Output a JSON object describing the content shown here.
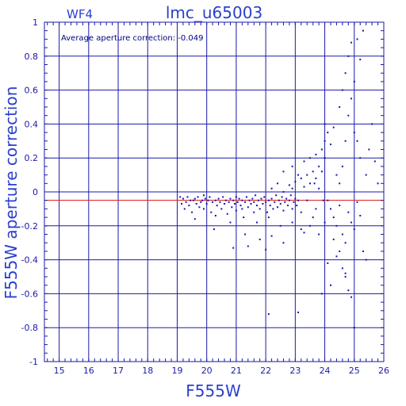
{
  "chart_data": {
    "type": "scatter",
    "title": "lmc_u65003",
    "subtitle": "WF4",
    "annotation": "Average aperture correction: -0.049",
    "xlabel": "F555W",
    "ylabel": "F555W aperture correction",
    "xlim": [
      14.5,
      26.0
    ],
    "ylim": [
      -1.0,
      1.0
    ],
    "xticks": [
      15,
      16,
      17,
      18,
      19,
      20,
      21,
      22,
      23,
      24,
      25,
      26
    ],
    "yticks": [
      -1,
      -0.8,
      -0.6,
      -0.4,
      -0.2,
      0,
      0.2,
      0.4,
      0.6,
      0.8,
      1
    ],
    "ytick_labels": [
      "-1",
      "-0.8",
      "-0.6",
      "-0.4",
      "-0.2",
      "0",
      "0.2",
      "0.4",
      "0.6",
      "0.8",
      "1"
    ],
    "grid": true,
    "reference_line": {
      "y": -0.049,
      "color": "#e02020"
    },
    "colors": {
      "axes": "#1a1aa8",
      "points": "#1515b0",
      "text": "#2a3fd0"
    },
    "series": [
      {
        "values": [
          [
            19.1,
            -0.03
          ],
          [
            19.15,
            -0.07
          ],
          [
            19.2,
            -0.04
          ],
          [
            19.25,
            -0.1
          ],
          [
            19.3,
            -0.06
          ],
          [
            19.35,
            -0.03
          ],
          [
            19.4,
            -0.08
          ],
          [
            19.45,
            -0.05
          ],
          [
            19.5,
            -0.12
          ],
          [
            19.55,
            -0.05
          ],
          [
            19.6,
            -0.04
          ],
          [
            19.6,
            -0.16
          ],
          [
            19.65,
            -0.07
          ],
          [
            19.7,
            -0.03
          ],
          [
            19.75,
            -0.09
          ],
          [
            19.8,
            -0.06
          ],
          [
            19.85,
            -0.05
          ],
          [
            19.9,
            -0.1
          ],
          [
            19.95,
            -0.04
          ],
          [
            20.0,
            -0.07
          ],
          [
            20.05,
            -0.05
          ],
          [
            20.1,
            -0.03
          ],
          [
            20.15,
            -0.12
          ],
          [
            20.2,
            -0.06
          ],
          [
            20.25,
            -0.22
          ],
          [
            20.3,
            -0.05
          ],
          [
            20.35,
            -0.08
          ],
          [
            20.4,
            -0.04
          ],
          [
            20.45,
            -0.06
          ],
          [
            20.5,
            -0.1
          ],
          [
            20.55,
            -0.03
          ],
          [
            20.6,
            -0.07
          ],
          [
            20.65,
            -0.05
          ],
          [
            20.7,
            -0.13
          ],
          [
            20.75,
            -0.06
          ],
          [
            20.8,
            -0.04
          ],
          [
            20.85,
            -0.09
          ],
          [
            20.9,
            -0.05
          ],
          [
            20.95,
            -0.07
          ],
          [
            21.0,
            -0.03
          ],
          [
            21.0,
            -0.11
          ],
          [
            21.05,
            -0.06
          ],
          [
            21.1,
            -0.04
          ],
          [
            21.15,
            -0.08
          ],
          [
            21.2,
            -0.05
          ],
          [
            21.25,
            -0.15
          ],
          [
            21.3,
            -0.06
          ],
          [
            21.35,
            -0.03
          ],
          [
            21.4,
            -0.09
          ],
          [
            21.45,
            -0.05
          ],
          [
            21.5,
            -0.07
          ],
          [
            21.55,
            -0.04
          ],
          [
            21.6,
            -0.12
          ],
          [
            21.6,
            -0.06
          ],
          [
            21.65,
            -0.02
          ],
          [
            21.7,
            -0.08
          ],
          [
            21.75,
            -0.05
          ],
          [
            21.8,
            -0.1
          ],
          [
            21.85,
            -0.04
          ],
          [
            21.9,
            -0.07
          ],
          [
            21.95,
            -0.03
          ],
          [
            22.0,
            -0.06
          ],
          [
            22.05,
            -0.12
          ],
          [
            22.1,
            -0.05
          ],
          [
            22.15,
            -0.08
          ],
          [
            22.2,
            -0.04
          ],
          [
            22.25,
            -0.1
          ],
          [
            22.3,
            -0.06
          ],
          [
            22.35,
            -0.02
          ],
          [
            22.4,
            -0.09
          ],
          [
            22.45,
            -0.05
          ],
          [
            22.5,
            -0.07
          ],
          [
            22.55,
            -0.03
          ],
          [
            22.6,
            -0.11
          ],
          [
            22.65,
            -0.06
          ],
          [
            22.7,
            -0.04
          ],
          [
            22.75,
            -0.08
          ],
          [
            22.8,
            -0.05
          ],
          [
            22.85,
            -0.02
          ],
          [
            22.9,
            -0.1
          ],
          [
            22.95,
            -0.06
          ],
          [
            23.0,
            -0.04
          ],
          [
            23.05,
            -0.08
          ],
          [
            23.1,
            -0.05
          ],
          [
            19.9,
            -0.02
          ],
          [
            20.3,
            -0.14
          ],
          [
            20.8,
            -0.18
          ],
          [
            21.2,
            -0.1
          ],
          [
            21.7,
            -0.18
          ],
          [
            22.1,
            -0.15
          ],
          [
            22.5,
            -0.2
          ],
          [
            22.9,
            -0.18
          ],
          [
            23.2,
            -0.22
          ],
          [
            21.3,
            -0.25
          ],
          [
            21.8,
            -0.28
          ],
          [
            22.2,
            -0.26
          ],
          [
            22.6,
            -0.3
          ],
          [
            21.4,
            -0.32
          ],
          [
            20.9,
            -0.33
          ],
          [
            22.0,
            -0.34
          ],
          [
            23.3,
            -0.24
          ],
          [
            23.5,
            -0.2
          ],
          [
            23.6,
            -0.15
          ],
          [
            23.7,
            -0.1
          ],
          [
            23.8,
            -0.25
          ],
          [
            22.2,
            0.02
          ],
          [
            22.4,
            0.05
          ],
          [
            22.6,
            0.0
          ],
          [
            22.8,
            0.04
          ],
          [
            22.9,
            0.02
          ],
          [
            23.0,
            0.06
          ],
          [
            23.2,
            0.08
          ],
          [
            23.3,
            0.03
          ],
          [
            23.4,
            0.1
          ],
          [
            23.5,
            0.05
          ],
          [
            23.6,
            0.12
          ],
          [
            23.7,
            0.08
          ],
          [
            23.8,
            0.15
          ],
          [
            23.9,
            0.12
          ],
          [
            22.6,
            0.12
          ],
          [
            22.9,
            0.15
          ],
          [
            23.1,
            0.1
          ],
          [
            23.3,
            0.18
          ],
          [
            23.5,
            0.2
          ],
          [
            23.7,
            0.22
          ],
          [
            23.9,
            0.25
          ],
          [
            24.0,
            0.2
          ],
          [
            24.0,
            0.3
          ],
          [
            24.0,
            0.4
          ],
          [
            24.1,
            0.35
          ],
          [
            24.2,
            0.28
          ],
          [
            24.3,
            0.38
          ],
          [
            24.4,
            0.1
          ],
          [
            24.5,
            0.05
          ],
          [
            24.6,
            0.15
          ],
          [
            24.7,
            0.3
          ],
          [
            24.8,
            0.45
          ],
          [
            24.9,
            0.55
          ],
          [
            25.0,
            0.65
          ],
          [
            24.8,
            0.8
          ],
          [
            24.9,
            0.88
          ],
          [
            25.1,
            0.9
          ],
          [
            25.3,
            0.95
          ],
          [
            25.2,
            0.78
          ],
          [
            24.7,
            0.7
          ],
          [
            24.6,
            0.6
          ],
          [
            24.5,
            0.5
          ],
          [
            25.0,
            0.35
          ],
          [
            25.1,
            0.3
          ],
          [
            25.2,
            0.2
          ],
          [
            25.4,
            0.1
          ],
          [
            25.5,
            0.25
          ],
          [
            25.6,
            0.4
          ],
          [
            25.7,
            0.18
          ],
          [
            25.8,
            0.05
          ],
          [
            24.1,
            -0.05
          ],
          [
            24.2,
            -0.1
          ],
          [
            24.3,
            -0.15
          ],
          [
            24.4,
            -0.2
          ],
          [
            24.5,
            -0.08
          ],
          [
            24.6,
            -0.25
          ],
          [
            24.7,
            -0.3
          ],
          [
            24.8,
            -0.12
          ],
          [
            24.9,
            -0.18
          ],
          [
            25.0,
            -0.22
          ],
          [
            25.1,
            -0.06
          ],
          [
            25.2,
            -0.14
          ],
          [
            25.3,
            -0.35
          ],
          [
            25.4,
            -0.4
          ],
          [
            24.1,
            -0.42
          ],
          [
            24.2,
            -0.55
          ],
          [
            24.4,
            -0.38
          ],
          [
            24.6,
            -0.45
          ],
          [
            24.7,
            -0.5
          ],
          [
            24.8,
            -0.58
          ],
          [
            24.9,
            -0.62
          ],
          [
            24.7,
            -0.48
          ],
          [
            25.0,
            -0.8
          ],
          [
            22.1,
            -0.72
          ],
          [
            23.1,
            -0.71
          ],
          [
            23.9,
            -0.6
          ],
          [
            24.5,
            -0.35
          ],
          [
            24.3,
            -0.28
          ],
          [
            24.0,
            -0.18
          ],
          [
            23.95,
            -0.05
          ],
          [
            23.8,
            0.02
          ],
          [
            23.65,
            0.05
          ],
          [
            23.4,
            -0.05
          ],
          [
            23.2,
            -0.12
          ]
        ]
      }
    ]
  }
}
